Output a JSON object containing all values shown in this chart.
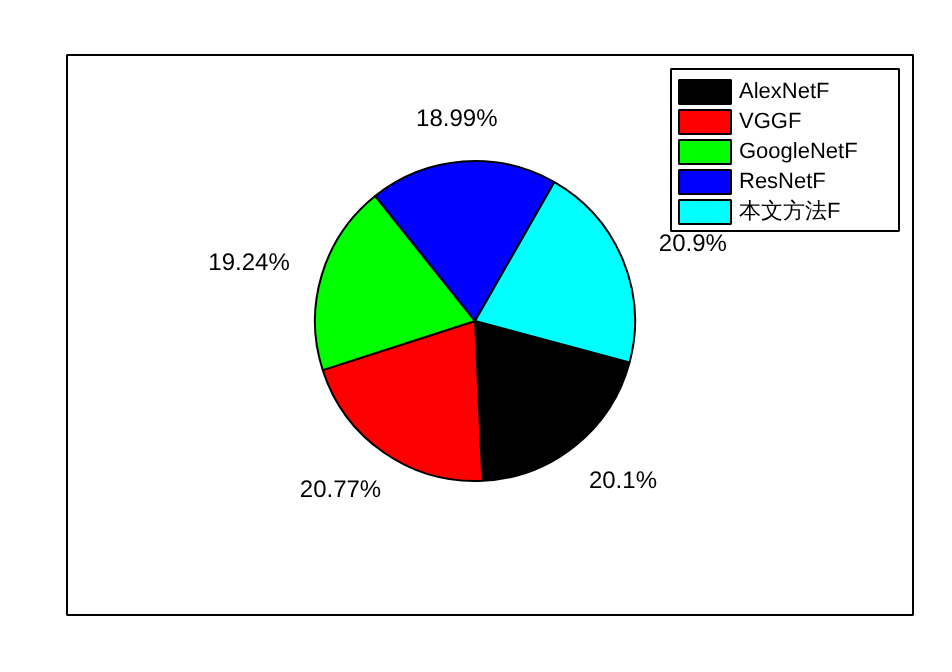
{
  "chart_data": {
    "type": "pie",
    "categories": [
      "AlexNetF",
      "VGGF",
      "GoogleNetF",
      "ResNetF",
      "本文方法F"
    ],
    "values": [
      20.1,
      20.77,
      19.24,
      18.99,
      20.9
    ],
    "colors": [
      "#000000",
      "#ff0000",
      "#00ff00",
      "#0000ff",
      "#00ffff"
    ],
    "value_labels": [
      "20.1%",
      "20.77%",
      "19.24%",
      "18.99%",
      "20.9%"
    ],
    "legend": "top right"
  }
}
